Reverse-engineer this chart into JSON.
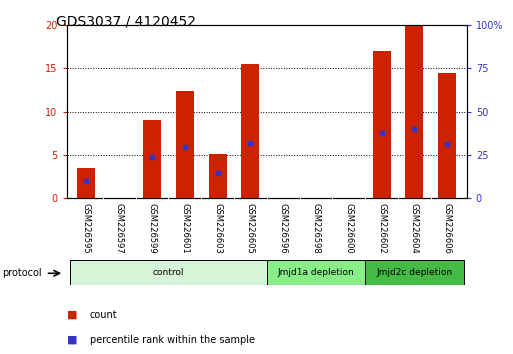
{
  "title": "GDS3037 / 4120452",
  "categories": [
    "GSM226595",
    "GSM226597",
    "GSM226599",
    "GSM226601",
    "GSM226603",
    "GSM226605",
    "GSM226596",
    "GSM226598",
    "GSM226600",
    "GSM226602",
    "GSM226604",
    "GSM226606"
  ],
  "count_values": [
    3.5,
    0,
    9.0,
    12.4,
    5.1,
    15.5,
    0,
    0,
    0,
    17.0,
    20.0,
    14.4
  ],
  "percentile_values": [
    10.0,
    0,
    23.5,
    29.5,
    14.5,
    32.0,
    0,
    0,
    0,
    37.5,
    40.0,
    31.0
  ],
  "bar_color": "#cc2200",
  "dot_color": "#3333cc",
  "ylim_left": [
    0,
    20
  ],
  "ylim_right": [
    0,
    100
  ],
  "yticks_left": [
    0,
    5,
    10,
    15,
    20
  ],
  "yticks_right": [
    0,
    25,
    50,
    75,
    100
  ],
  "ytick_labels_right": [
    "0",
    "25",
    "50",
    "75",
    "100%"
  ],
  "bg_plot": "#ffffff",
  "bg_figure": "#ffffff",
  "groups": [
    {
      "label": "control",
      "start": 0,
      "end": 6,
      "color": "#d6f5d6"
    },
    {
      "label": "Jmjd1a depletion",
      "start": 6,
      "end": 9,
      "color": "#88ee88"
    },
    {
      "label": "Jmjd2c depletion",
      "start": 9,
      "end": 12,
      "color": "#44bb44"
    }
  ],
  "protocol_label": "protocol",
  "legend_count": "count",
  "legend_percentile": "percentile rank within the sample",
  "title_fontsize": 10,
  "tick_fontsize": 7,
  "bar_width": 0.55,
  "cat_box_color": "#cccccc",
  "cat_text_fontsize": 6
}
